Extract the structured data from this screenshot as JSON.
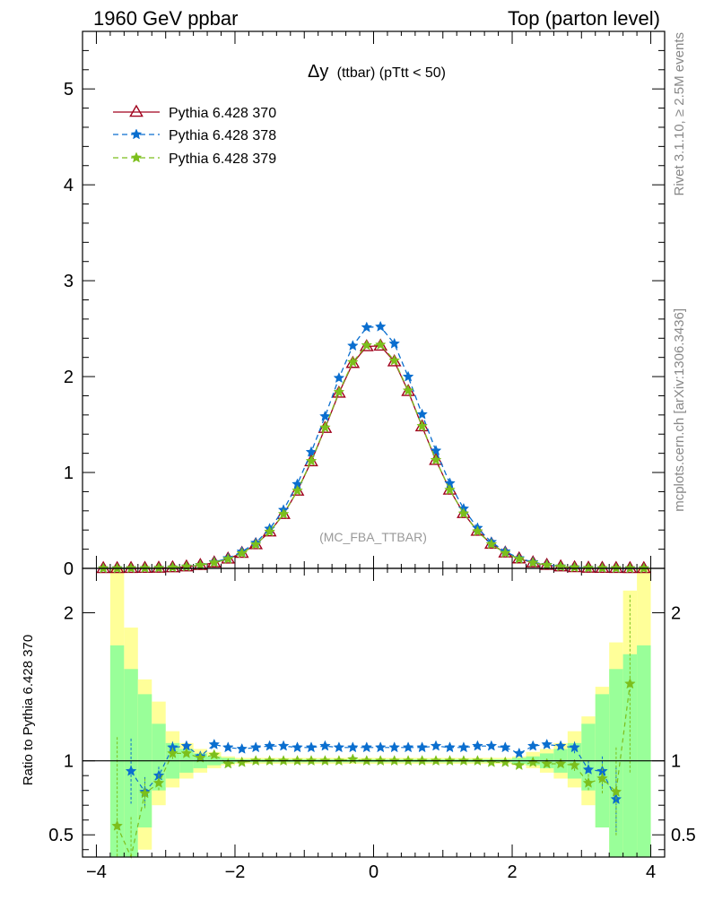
{
  "header": {
    "left": "1960 GeV ppbar",
    "right": "Top (parton level)"
  },
  "side_labels": {
    "rivet": "Rivet 3.1.10, ≥ 2.5M events",
    "mcplots": "mcplots.cern.ch [arXiv:1306.3436]"
  },
  "chart_data": [
    {
      "type": "line",
      "title_symbol": "Δy",
      "title_rest": "(ttbar) (pTtt < 50)",
      "watermark": "(MC_FBA_TTBAR)",
      "xlabel": "",
      "ylabel": "",
      "xlim": [
        -4.2,
        4.2
      ],
      "ylim": [
        0,
        5.6
      ],
      "y_ticks": [
        0,
        1,
        2,
        3,
        4,
        5
      ],
      "legend_position": "top-left",
      "x": [
        -3.9,
        -3.7,
        -3.5,
        -3.3,
        -3.1,
        -2.9,
        -2.7,
        -2.5,
        -2.3,
        -2.1,
        -1.9,
        -1.7,
        -1.5,
        -1.3,
        -1.1,
        -0.9,
        -0.7,
        -0.5,
        -0.3,
        -0.1,
        0.1,
        0.3,
        0.5,
        0.7,
        0.9,
        1.1,
        1.3,
        1.5,
        1.7,
        1.9,
        2.1,
        2.3,
        2.5,
        2.7,
        2.9,
        3.1,
        3.3,
        3.5,
        3.7,
        3.9
      ],
      "series": [
        {
          "name": "Pythia 6.428 370",
          "color": "#a0001c",
          "marker": "open-triangle",
          "dash": "solid",
          "values": [
            0.0,
            0.0,
            0.001,
            0.002,
            0.004,
            0.008,
            0.017,
            0.033,
            0.059,
            0.099,
            0.159,
            0.249,
            0.382,
            0.564,
            0.807,
            1.114,
            1.462,
            1.829,
            2.139,
            2.314,
            2.32,
            2.156,
            1.846,
            1.478,
            1.128,
            0.818,
            0.574,
            0.389,
            0.254,
            0.162,
            0.101,
            0.06,
            0.034,
            0.018,
            0.009,
            0.004,
            0.002,
            0.001,
            0.0,
            0.0
          ]
        },
        {
          "name": "Pythia 6.428 378",
          "color": "#0a6ecf",
          "marker": "star",
          "dash": "dashed",
          "values": [
            0.0,
            0.0,
            0.001,
            0.002,
            0.004,
            0.009,
            0.018,
            0.034,
            0.065,
            0.106,
            0.173,
            0.266,
            0.413,
            0.609,
            0.878,
            1.213,
            1.585,
            1.985,
            2.321,
            2.513,
            2.52,
            2.343,
            1.998,
            1.606,
            1.227,
            0.887,
            0.622,
            0.421,
            0.274,
            0.176,
            0.105,
            0.065,
            0.036,
            0.019,
            0.01,
            0.004,
            0.002,
            0.001,
            0.0,
            0.0
          ]
        },
        {
          "name": "Pythia 6.428 379",
          "color": "#7cbf1c",
          "marker": "star",
          "dash": "dashed",
          "values": [
            0.0,
            0.0,
            0.001,
            0.002,
            0.004,
            0.009,
            0.018,
            0.033,
            0.06,
            0.097,
            0.157,
            0.248,
            0.382,
            0.566,
            0.81,
            1.119,
            1.468,
            1.838,
            2.15,
            2.326,
            2.332,
            2.167,
            1.854,
            1.483,
            1.13,
            0.818,
            0.572,
            0.386,
            0.251,
            0.16,
            0.098,
            0.059,
            0.034,
            0.018,
            0.009,
            0.004,
            0.002,
            0.001,
            0.0,
            0.0
          ]
        }
      ]
    },
    {
      "type": "line",
      "ylabel": "Ratio to Pythia 6.428 370",
      "xlim": [
        -4.2,
        4.2
      ],
      "ylim": [
        0.35,
        2.3
      ],
      "x_ticks": [
        -4,
        -2,
        0,
        2,
        4
      ],
      "y_ticks": [
        0.5,
        1,
        2
      ],
      "reference_line": 1,
      "x": [
        -3.7,
        -3.5,
        -3.3,
        -3.1,
        -2.9,
        -2.7,
        -2.5,
        -2.3,
        -2.1,
        -1.9,
        -1.7,
        -1.5,
        -1.3,
        -1.1,
        -0.9,
        -0.7,
        -0.5,
        -0.3,
        -0.1,
        0.1,
        0.3,
        0.5,
        0.7,
        0.9,
        1.1,
        1.3,
        1.5,
        1.7,
        1.9,
        2.1,
        2.3,
        2.5,
        2.7,
        2.9,
        3.1,
        3.3,
        3.5,
        3.7
      ],
      "bands": {
        "x_edges": [
          -3.8,
          -3.6,
          -3.4,
          -3.2,
          -3.0,
          -2.8,
          -2.6,
          -2.4,
          -2.2,
          -2.0,
          2.0,
          2.2,
          2.4,
          2.6,
          2.8,
          3.0,
          3.2,
          3.4,
          3.6,
          3.8,
          4.0
        ],
        "inner_color": "#99ff99",
        "outer_color": "#ffff99",
        "inner": [
          [
            0.1,
            1.78
          ],
          [
            0.2,
            1.62
          ],
          [
            0.55,
            1.45
          ],
          [
            0.8,
            1.25
          ],
          [
            0.88,
            1.12
          ],
          [
            0.92,
            1.08
          ],
          [
            0.95,
            1.05
          ],
          [
            0.97,
            1.03
          ],
          [
            0.98,
            1.02
          ],
          [
            0.99,
            1.01
          ],
          [
            0.98,
            1.02
          ],
          [
            0.97,
            1.03
          ],
          [
            0.95,
            1.05
          ],
          [
            0.92,
            1.08
          ],
          [
            0.88,
            1.12
          ],
          [
            0.8,
            1.25
          ],
          [
            0.55,
            1.45
          ],
          [
            0.35,
            1.62
          ],
          [
            0.2,
            1.72
          ],
          [
            0.1,
            1.78
          ]
        ],
        "outer": [
          [
            0.1,
            2.3
          ],
          [
            0.2,
            1.9
          ],
          [
            0.4,
            1.55
          ],
          [
            0.7,
            1.4
          ],
          [
            0.82,
            1.2
          ],
          [
            0.88,
            1.12
          ],
          [
            0.92,
            1.08
          ],
          [
            0.95,
            1.06
          ],
          [
            0.97,
            1.03
          ],
          [
            0.98,
            1.02
          ],
          [
            0.97,
            1.03
          ],
          [
            0.95,
            1.06
          ],
          [
            0.92,
            1.08
          ],
          [
            0.88,
            1.12
          ],
          [
            0.82,
            1.2
          ],
          [
            0.7,
            1.3
          ],
          [
            0.55,
            1.5
          ],
          [
            0.4,
            1.8
          ],
          [
            0.2,
            2.15
          ],
          [
            0.1,
            2.3
          ]
        ]
      },
      "series": [
        {
          "name": "Pythia 6.428 378",
          "color": "#0a6ecf",
          "values": [
            null,
            0.93,
            0.79,
            0.9,
            1.09,
            1.1,
            1.03,
            1.11,
            1.09,
            1.08,
            1.09,
            1.1,
            1.1,
            1.09,
            1.09,
            1.1,
            1.09,
            1.09,
            1.09,
            1.09,
            1.09,
            1.09,
            1.09,
            1.1,
            1.09,
            1.09,
            1.1,
            1.1,
            1.09,
            1.05,
            1.1,
            1.11,
            1.1,
            1.09,
            0.94,
            0.93,
            0.74,
            null
          ],
          "errors": [
            0,
            0.22,
            0.1,
            0.06,
            0.04,
            0.03,
            0.02,
            0.01,
            0.01,
            0.01,
            0.01,
            0.01,
            0.01,
            0.01,
            0.01,
            0.01,
            0.01,
            0.01,
            0.01,
            0.01,
            0.01,
            0.01,
            0.01,
            0.01,
            0.01,
            0.01,
            0.01,
            0.01,
            0.01,
            0.01,
            0.01,
            0.02,
            0.03,
            0.04,
            0.06,
            0.1,
            0.22,
            0
          ]
        },
        {
          "name": "Pythia 6.428 379",
          "color": "#7cbf1c",
          "values": [
            0.56,
            0.32,
            0.78,
            0.85,
            1.05,
            1.05,
            1.02,
            1.04,
            0.98,
            0.99,
            1.0,
            1.0,
            1.0,
            1.0,
            1.0,
            1.0,
            1.0,
            1.01,
            1.0,
            1.0,
            1.0,
            1.0,
            1.0,
            1.0,
            1.0,
            1.0,
            1.0,
            0.99,
            0.99,
            0.97,
            0.99,
            0.98,
            0.98,
            0.97,
            0.85,
            0.88,
            0.79,
            1.52
          ],
          "errors": [
            0.6,
            0.3,
            0.1,
            0.06,
            0.04,
            0.03,
            0.02,
            0.01,
            0.01,
            0.01,
            0.01,
            0.01,
            0.01,
            0.01,
            0.01,
            0.01,
            0.01,
            0.01,
            0.01,
            0.01,
            0.01,
            0.01,
            0.01,
            0.01,
            0.01,
            0.01,
            0.01,
            0.01,
            0.01,
            0.01,
            0.01,
            0.02,
            0.03,
            0.04,
            0.06,
            0.1,
            0.3,
            0.6
          ]
        }
      ]
    }
  ]
}
